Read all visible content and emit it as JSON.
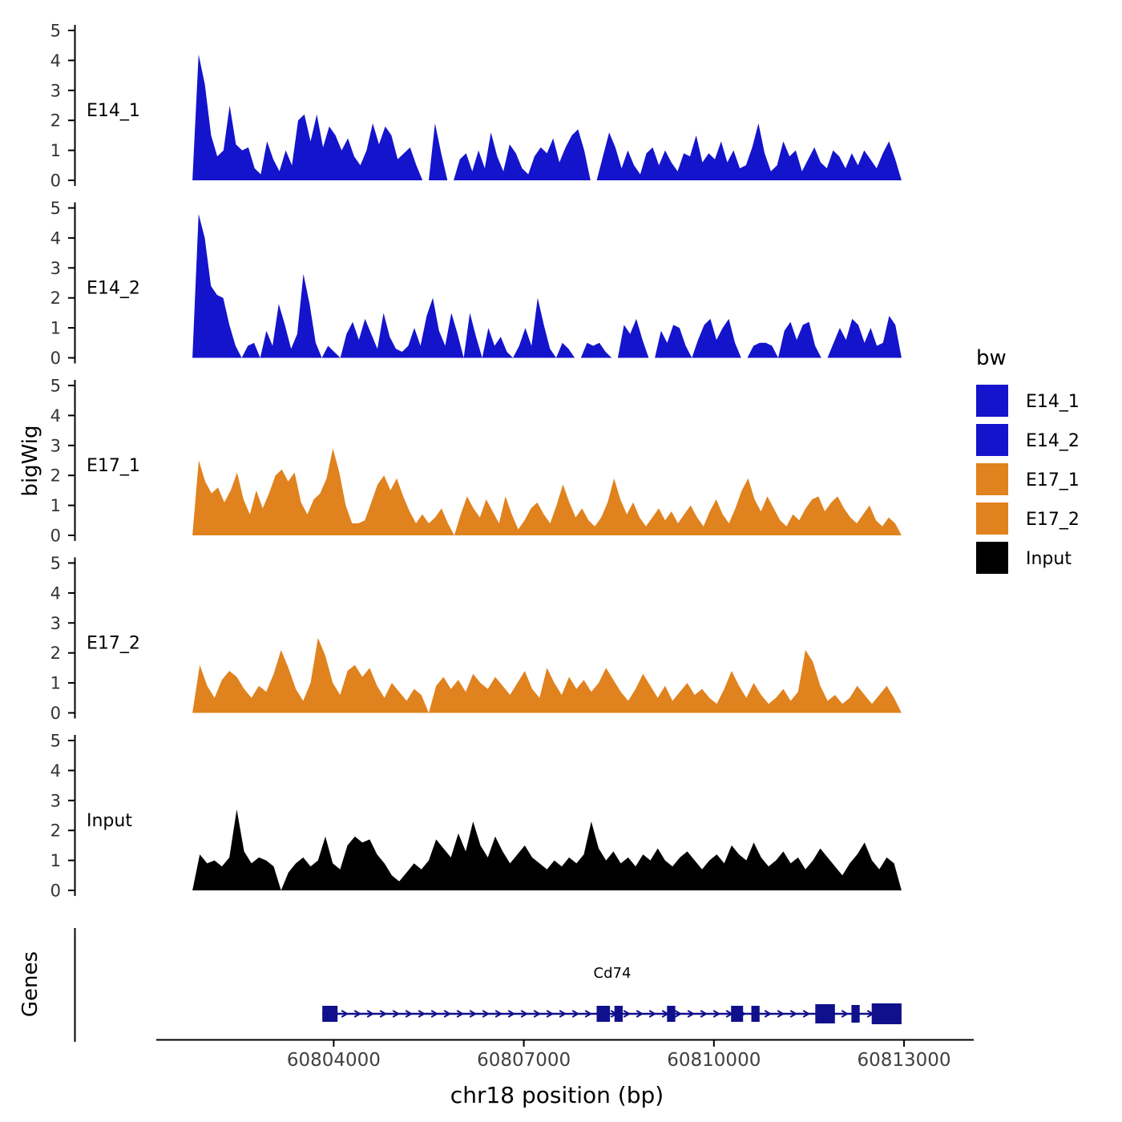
{
  "labels": {
    "genes_axis": "Genes"
  },
  "legend": {
    "title": "bw",
    "entries": [
      {
        "label": "E14_1",
        "color": "#1414CC"
      },
      {
        "label": "E14_2",
        "color": "#1414CC"
      },
      {
        "label": "E17_1",
        "color": "#E0821E"
      },
      {
        "label": "E17_2",
        "color": "#E0821E"
      },
      {
        "label": "Input",
        "color": "#000000"
      }
    ]
  },
  "chart_data": {
    "type": "area",
    "title": "",
    "xlabel": "chr18 position (bp)",
    "ylabel": "bigWig",
    "grid": false,
    "legend_position": "right",
    "x_domain": [
      60801200,
      60814100
    ],
    "x_ticks": [
      60804000,
      60807000,
      60810000,
      60813000
    ],
    "x_tick_labels": [
      "60804000",
      "60807000",
      "60810000",
      "60813000"
    ],
    "y_ticks": [
      0,
      1,
      2,
      3,
      4,
      5
    ],
    "ylim": [
      0,
      5
    ],
    "data_start": 60801770,
    "data_end": 60812960,
    "series": [
      {
        "name": "E14_1",
        "color": "#1414CC",
        "values": [
          0,
          4.2,
          3.2,
          1.5,
          0.8,
          1.0,
          2.5,
          1.2,
          1.0,
          1.1,
          0.4,
          0.2,
          1.3,
          0.7,
          0.3,
          1.0,
          0.5,
          2.0,
          2.2,
          1.3,
          2.2,
          1.1,
          1.8,
          1.5,
          1.0,
          1.4,
          0.8,
          0.5,
          1.0,
          1.9,
          1.2,
          1.8,
          1.5,
          0.7,
          0.9,
          1.1,
          0.5,
          0,
          0,
          1.9,
          0.9,
          0,
          0,
          0.7,
          0.9,
          0.3,
          1.0,
          0.4,
          1.6,
          0.8,
          0.3,
          1.2,
          0.9,
          0.4,
          0.2,
          0.8,
          1.1,
          0.9,
          1.4,
          0.6,
          1.1,
          1.5,
          1.7,
          1.0,
          0,
          0,
          0.8,
          1.6,
          1.1,
          0.4,
          1.0,
          0.5,
          0.2,
          0.9,
          1.1,
          0.5,
          1.0,
          0.6,
          0.3,
          0.9,
          0.8,
          1.5,
          0.6,
          0.9,
          0.7,
          1.3,
          0.6,
          1.0,
          0.4,
          0.5,
          1.1,
          1.9,
          0.9,
          0.3,
          0.5,
          1.3,
          0.8,
          1.0,
          0.3,
          0.7,
          1.1,
          0.6,
          0.4,
          1.0,
          0.8,
          0.4,
          0.9,
          0.5,
          1.0,
          0.7,
          0.4,
          0.9,
          1.3,
          0.7,
          0
        ]
      },
      {
        "name": "E14_2",
        "color": "#1414CC",
        "values": [
          0,
          4.8,
          4.0,
          2.4,
          2.1,
          2.0,
          1.1,
          0.4,
          0,
          0.4,
          0.5,
          0,
          0.9,
          0.4,
          1.8,
          1.1,
          0.3,
          0.8,
          2.8,
          1.8,
          0.5,
          0,
          0.4,
          0.2,
          0,
          0.8,
          1.2,
          0.6,
          1.3,
          0.8,
          0.3,
          1.5,
          0.7,
          0.3,
          0.2,
          0.4,
          1.0,
          0.4,
          1.4,
          2.0,
          0.9,
          0.4,
          1.5,
          0.8,
          0,
          1.5,
          0.7,
          0,
          1.0,
          0.4,
          0.7,
          0.2,
          0,
          0.4,
          1.0,
          0.4,
          2.0,
          1.1,
          0.3,
          0,
          0.5,
          0.3,
          0,
          0,
          0.5,
          0.4,
          0.5,
          0.2,
          0,
          0,
          1.1,
          0.8,
          1.3,
          0.6,
          0,
          0,
          0.9,
          0.5,
          1.1,
          1.0,
          0.4,
          0,
          0.6,
          1.1,
          1.3,
          0.6,
          1.0,
          1.3,
          0.5,
          0,
          0,
          0.4,
          0.5,
          0.5,
          0.4,
          0,
          0.9,
          1.2,
          0.6,
          1.1,
          1.2,
          0.4,
          0,
          0,
          0.5,
          1.0,
          0.6,
          1.3,
          1.1,
          0.5,
          1.0,
          0.4,
          0.5,
          1.4,
          1.1,
          0
        ]
      },
      {
        "name": "E17_1",
        "color": "#E0821E",
        "values": [
          0,
          2.5,
          1.8,
          1.4,
          1.6,
          1.1,
          1.5,
          2.1,
          1.2,
          0.7,
          1.5,
          0.9,
          1.4,
          2.0,
          2.2,
          1.8,
          2.1,
          1.1,
          0.7,
          1.2,
          1.4,
          1.9,
          2.9,
          2.1,
          1.0,
          0.4,
          0.4,
          0.5,
          1.1,
          1.7,
          2.0,
          1.5,
          1.9,
          1.3,
          0.8,
          0.4,
          0.7,
          0.4,
          0.6,
          0.9,
          0.4,
          0,
          0.7,
          1.3,
          0.9,
          0.6,
          1.2,
          0.8,
          0.4,
          1.3,
          0.7,
          0.2,
          0.5,
          0.9,
          1.1,
          0.7,
          0.4,
          1.0,
          1.7,
          1.1,
          0.6,
          0.9,
          0.5,
          0.3,
          0.6,
          1.1,
          1.9,
          1.2,
          0.7,
          1.1,
          0.6,
          0.3,
          0.6,
          0.9,
          0.5,
          0.8,
          0.4,
          0.7,
          1.0,
          0.6,
          0.3,
          0.8,
          1.2,
          0.7,
          0.4,
          0.9,
          1.5,
          1.9,
          1.2,
          0.8,
          1.3,
          0.9,
          0.5,
          0.3,
          0.7,
          0.5,
          0.9,
          1.2,
          1.3,
          0.8,
          1.1,
          1.3,
          0.9,
          0.6,
          0.4,
          0.7,
          1.0,
          0.5,
          0.3,
          0.6,
          0.4,
          0
        ]
      },
      {
        "name": "E17_2",
        "color": "#E0821E",
        "values": [
          0,
          1.6,
          0.9,
          0.5,
          1.1,
          1.4,
          1.2,
          0.8,
          0.5,
          0.9,
          0.7,
          1.3,
          2.1,
          1.5,
          0.8,
          0.4,
          1.0,
          2.5,
          1.9,
          1.0,
          0.6,
          1.4,
          1.6,
          1.2,
          1.5,
          0.9,
          0.5,
          1.0,
          0.7,
          0.4,
          0.8,
          0.6,
          0,
          0.9,
          1.2,
          0.8,
          1.1,
          0.7,
          1.3,
          1.0,
          0.8,
          1.2,
          0.9,
          0.6,
          1.0,
          1.4,
          0.8,
          0.5,
          1.5,
          1.0,
          0.6,
          1.2,
          0.8,
          1.1,
          0.7,
          1.0,
          1.5,
          1.1,
          0.7,
          0.4,
          0.8,
          1.3,
          0.9,
          0.5,
          0.9,
          0.4,
          0.7,
          1.0,
          0.6,
          0.8,
          0.5,
          0.3,
          0.8,
          1.4,
          0.9,
          0.5,
          1.0,
          0.6,
          0.3,
          0.5,
          0.8,
          0.4,
          0.7,
          2.1,
          1.7,
          0.9,
          0.4,
          0.6,
          0.3,
          0.5,
          0.9,
          0.6,
          0.3,
          0.6,
          0.9,
          0.5,
          0
        ]
      },
      {
        "name": "Input",
        "color": "#000000",
        "values": [
          0,
          1.2,
          0.9,
          1.0,
          0.8,
          1.1,
          2.7,
          1.3,
          0.9,
          1.1,
          1.0,
          0.8,
          0,
          0.6,
          0.9,
          1.1,
          0.8,
          1.0,
          1.8,
          0.9,
          0.7,
          1.5,
          1.8,
          1.6,
          1.7,
          1.2,
          0.9,
          0.5,
          0.3,
          0.6,
          0.9,
          0.7,
          1.0,
          1.7,
          1.4,
          1.1,
          1.9,
          1.3,
          2.3,
          1.5,
          1.1,
          1.8,
          1.3,
          0.9,
          1.2,
          1.5,
          1.1,
          0.9,
          0.7,
          1.0,
          0.8,
          1.1,
          0.9,
          1.2,
          2.3,
          1.4,
          1.0,
          1.3,
          0.9,
          1.1,
          0.8,
          1.2,
          1.0,
          1.4,
          1.0,
          0.8,
          1.1,
          1.3,
          1.0,
          0.7,
          1.0,
          1.2,
          0.9,
          1.5,
          1.2,
          1.0,
          1.6,
          1.1,
          0.8,
          1.0,
          1.3,
          0.9,
          1.1,
          0.7,
          1.0,
          1.4,
          1.1,
          0.8,
          0.5,
          0.9,
          1.2,
          1.6,
          1.0,
          0.7,
          1.1,
          0.9,
          0
        ]
      }
    ],
    "gene": {
      "name": "Cd74",
      "strand": "+",
      "color": "#10108C",
      "start": 60803820,
      "end": 60812960,
      "exons": [
        [
          60803820,
          60804060
        ],
        [
          60808150,
          60808360
        ],
        [
          60808430,
          60808560
        ],
        [
          60809260,
          60809390
        ],
        [
          60810270,
          60810460
        ],
        [
          60810590,
          60810720
        ],
        [
          60811600,
          60811910
        ],
        [
          60812170,
          60812300
        ],
        [
          60812490,
          60812960
        ]
      ],
      "exon_heights": [
        20,
        20,
        20,
        20,
        20,
        20,
        24,
        22,
        26
      ]
    }
  }
}
